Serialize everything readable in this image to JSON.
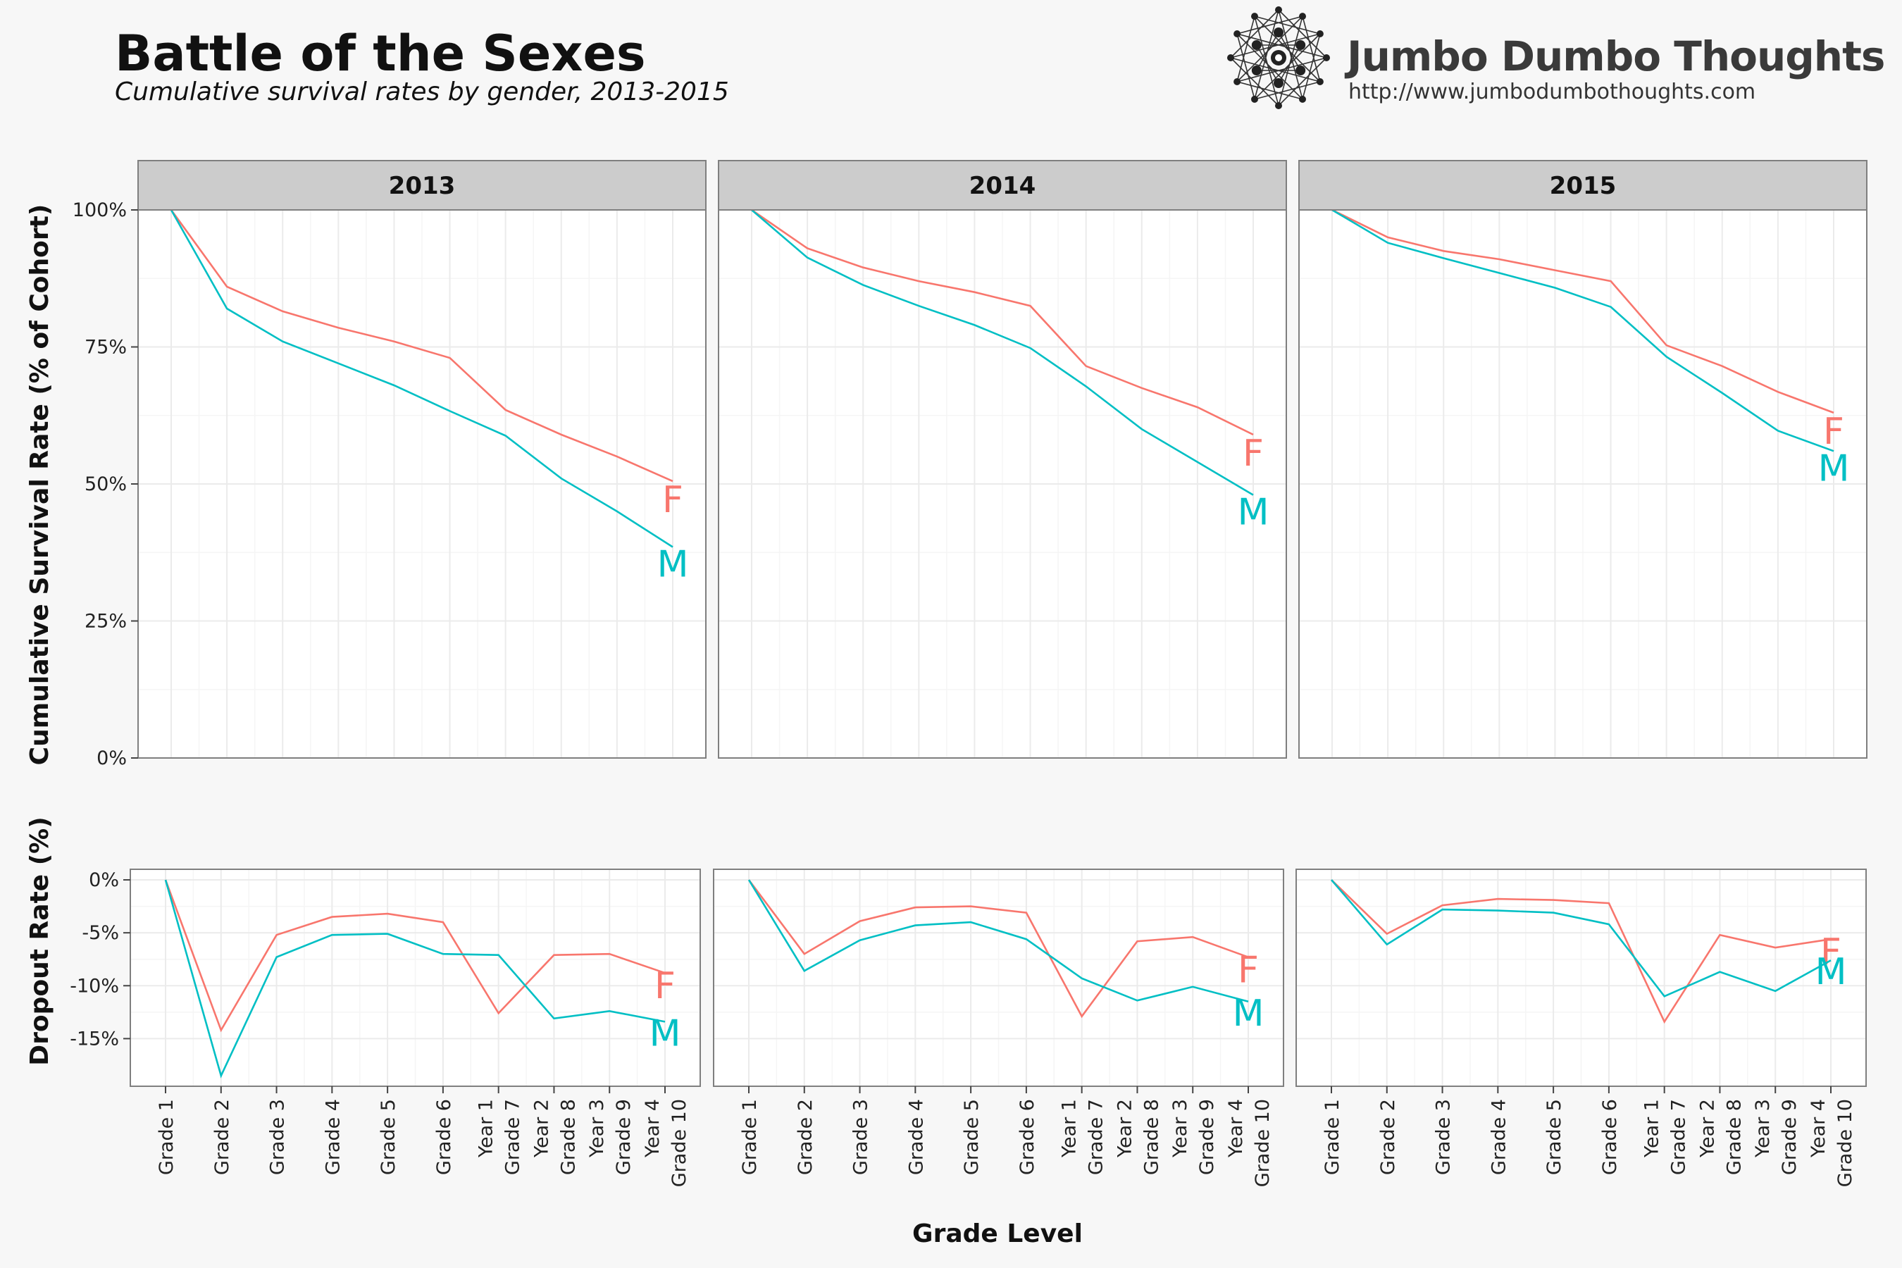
{
  "header": {
    "title": "Battle of the Sexes",
    "subtitle": "Cumulative survival rates by gender, 2013-2015"
  },
  "brand": {
    "name": "Jumbo Dumbo Thoughts",
    "url": "http://www.jumbodumbothoughts.com",
    "logo_icon": "network-graph-icon"
  },
  "colors": {
    "F": "#F8766D",
    "M": "#00BFC4",
    "strip": "#cccccc",
    "grid": "#ebebeb",
    "panel_border": "#7f7f7f"
  },
  "chart_data": [
    {
      "type": "line",
      "facet_by": "year",
      "facets": [
        "2013",
        "2014",
        "2015"
      ],
      "categories": [
        "Grade 1",
        "Grade 2",
        "Grade 3",
        "Grade 4",
        "Grade 5",
        "Grade 6",
        "Year 1\nGrade 7",
        "Year 2\nGrade 8",
        "Year 3\nGrade 9",
        "Year 4\nGrade 10"
      ],
      "ylabel": "Cumulative Survival Rate (% of Cohort)",
      "xlabel": "",
      "ylim": [
        0,
        100
      ],
      "yticks": [
        0,
        25,
        50,
        75,
        100
      ],
      "ytick_labels": [
        "0%",
        "25%",
        "50%",
        "75%",
        "100%"
      ],
      "grid": true,
      "series_labels": [
        "F",
        "M"
      ],
      "panels": [
        {
          "year": "2013",
          "series": [
            {
              "name": "F",
              "values": [
                100,
                86,
                81.5,
                78.5,
                76,
                73,
                63.5,
                59,
                55,
                50.5
              ]
            },
            {
              "name": "M",
              "values": [
                100,
                82,
                76,
                72,
                68,
                63.3,
                58.8,
                51,
                45,
                38.5
              ]
            }
          ]
        },
        {
          "year": "2014",
          "series": [
            {
              "name": "F",
              "values": [
                100,
                93,
                89.5,
                87,
                85,
                82.5,
                71.5,
                67.5,
                64,
                59
              ]
            },
            {
              "name": "M",
              "values": [
                100,
                91.3,
                86.3,
                82.5,
                79,
                74.8,
                67.8,
                60,
                54,
                48
              ]
            }
          ]
        },
        {
          "year": "2015",
          "series": [
            {
              "name": "F",
              "values": [
                100,
                95,
                92.5,
                91,
                89,
                87,
                75.3,
                71.5,
                66.8,
                63
              ]
            },
            {
              "name": "M",
              "values": [
                100,
                94,
                91.2,
                88.5,
                85.8,
                82.3,
                73.2,
                66.6,
                59.7,
                56
              ]
            }
          ]
        }
      ]
    },
    {
      "type": "line",
      "facet_by": "year",
      "facets": [
        "2013",
        "2014",
        "2015"
      ],
      "categories": [
        "Grade 1",
        "Grade 2",
        "Grade 3",
        "Grade 4",
        "Grade 5",
        "Grade 6",
        "Year 1\nGrade 7",
        "Year 2\nGrade 8",
        "Year 3\nGrade 9",
        "Year 4\nGrade 10"
      ],
      "ylabel": "Dropout Rate (%)",
      "xlabel": "Grade Level",
      "ylim": [
        -19.5,
        1
      ],
      "yticks": [
        0,
        -5,
        -10,
        -15
      ],
      "ytick_labels": [
        "0%",
        "-5%",
        "-10%",
        "-15%"
      ],
      "grid": true,
      "series_labels": [
        "F",
        "M"
      ],
      "panels": [
        {
          "year": "2013",
          "series": [
            {
              "name": "F",
              "values": [
                0,
                -14.2,
                -5.2,
                -3.5,
                -3.2,
                -4,
                -12.6,
                -7.1,
                -7,
                -8.8
              ]
            },
            {
              "name": "M",
              "values": [
                0,
                -18.5,
                -7.3,
                -5.2,
                -5.1,
                -7,
                -7.1,
                -13.1,
                -12.4,
                -13.4
              ]
            }
          ]
        },
        {
          "year": "2014",
          "series": [
            {
              "name": "F",
              "values": [
                0,
                -7,
                -3.9,
                -2.6,
                -2.5,
                -3.1,
                -12.9,
                -5.8,
                -5.4,
                -7.3
              ]
            },
            {
              "name": "M",
              "values": [
                0,
                -8.6,
                -5.7,
                -4.3,
                -4,
                -5.6,
                -9.3,
                -11.4,
                -10.1,
                -11.5
              ]
            }
          ]
        },
        {
          "year": "2015",
          "series": [
            {
              "name": "F",
              "values": [
                0,
                -5.1,
                -2.4,
                -1.8,
                -1.9,
                -2.2,
                -13.4,
                -5.2,
                -6.4,
                -5.6
              ]
            },
            {
              "name": "M",
              "values": [
                0,
                -6.1,
                -2.8,
                -2.9,
                -3.1,
                -4.2,
                -11,
                -8.7,
                -10.5,
                -7.6
              ]
            }
          ]
        }
      ]
    }
  ]
}
